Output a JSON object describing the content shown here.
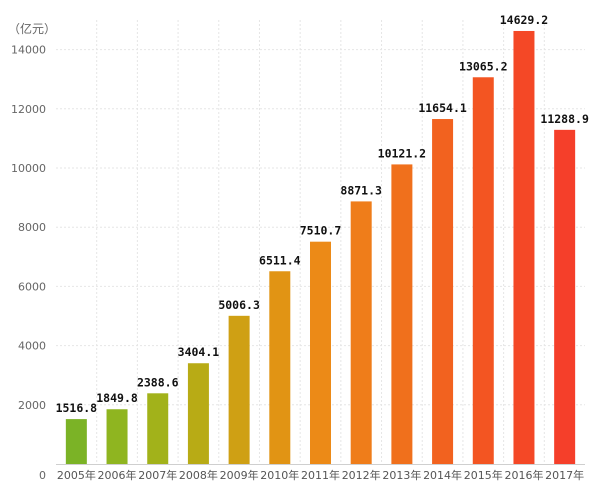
{
  "chart_data": {
    "type": "bar",
    "unit_label": "（亿元）",
    "categories": [
      "2005年",
      "2006年",
      "2007年",
      "2008年",
      "2009年",
      "2010年",
      "2011年",
      "2012年",
      "2013年",
      "2014年",
      "2015年",
      "2016年",
      "2017年"
    ],
    "values": [
      1516.8,
      1849.8,
      2388.6,
      3404.1,
      5006.3,
      6511.4,
      7510.7,
      8871.3,
      10121.2,
      11654.1,
      13065.2,
      14629.2,
      11288.9
    ],
    "data_labels": [
      "1516.8",
      "1849.8",
      "2388.6",
      "3404.1",
      "5006.3",
      "6511.4",
      "7510.7",
      "8871.3",
      "10121.2",
      "11654.1",
      "13065.2",
      "14629.2",
      "11288.9"
    ],
    "y_ticks": [
      0,
      2000,
      4000,
      6000,
      8000,
      10000,
      12000,
      14000
    ],
    "ylim": [
      0,
      15000
    ],
    "grid": true,
    "bar_colors": [
      "#7bb326",
      "#8fb520",
      "#a2b21a",
      "#b8ab15",
      "#cfa014",
      "#e19414",
      "#ec8a17",
      "#ef7d1a",
      "#f0701c",
      "#f2621f",
      "#f35522",
      "#f44826",
      "#f53f2a"
    ],
    "title": "",
    "xlabel": "",
    "ylabel": "（亿元）"
  }
}
